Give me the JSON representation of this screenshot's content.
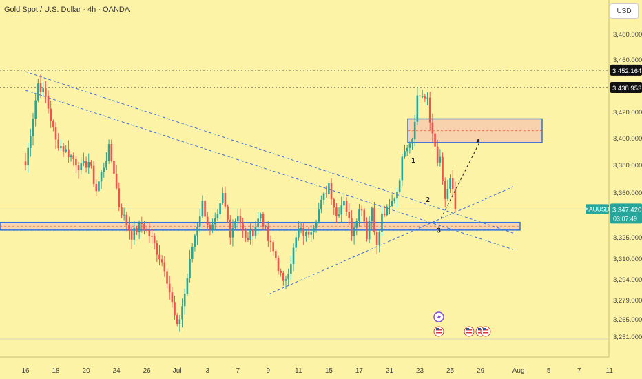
{
  "header": {
    "title": "Gold Spot / U.S. Dollar · 4h · OANDA",
    "currency": "USD"
  },
  "chart_data": {
    "type": "candlestick",
    "symbol": "XAUUSD",
    "last_price": "3,347.420",
    "countdown": "03:07:49",
    "y_ticks": [
      {
        "v": 3251,
        "label": "3,251.000"
      },
      {
        "v": 3265,
        "label": "3,265.000"
      },
      {
        "v": 3279,
        "label": "3,279.000"
      },
      {
        "v": 3294,
        "label": "3,294.000"
      },
      {
        "v": 3310,
        "label": "3,310.000"
      },
      {
        "v": 3325,
        "label": "3,325.000"
      },
      {
        "v": 3360,
        "label": "3,360.000"
      },
      {
        "v": 3380,
        "label": "3,380.000"
      },
      {
        "v": 3400,
        "label": "3,400.000"
      },
      {
        "v": 3420,
        "label": "3,420.000"
      },
      {
        "v": 3460,
        "label": "3,460.000"
      },
      {
        "v": 3480,
        "label": "3,480.000"
      }
    ],
    "x_ticks": [
      {
        "i": 0,
        "label": "16"
      },
      {
        "i": 12,
        "label": "18"
      },
      {
        "i": 24,
        "label": "20"
      },
      {
        "i": 36,
        "label": "24"
      },
      {
        "i": 48,
        "label": "26"
      },
      {
        "i": 60,
        "label": "Jul"
      },
      {
        "i": 72,
        "label": "3"
      },
      {
        "i": 84,
        "label": "7"
      },
      {
        "i": 96,
        "label": "9"
      },
      {
        "i": 108,
        "label": "11"
      },
      {
        "i": 120,
        "label": "15"
      },
      {
        "i": 132,
        "label": "17"
      },
      {
        "i": 144,
        "label": "21"
      },
      {
        "i": 156,
        "label": "23"
      },
      {
        "i": 168,
        "label": "25"
      },
      {
        "i": 180,
        "label": "29"
      },
      {
        "i": 195,
        "label": "Aug"
      },
      {
        "i": 207,
        "label": "5"
      },
      {
        "i": 219,
        "label": "7"
      },
      {
        "i": 231,
        "label": "11"
      }
    ],
    "price_tags": [
      {
        "v": 3452.164,
        "label": "3,452.164"
      },
      {
        "v": 3438.953,
        "label": "3,438.953"
      }
    ],
    "waypoints": [
      [
        0,
        3380
      ],
      [
        5,
        3442
      ],
      [
        8,
        3432
      ],
      [
        12,
        3398
      ],
      [
        18,
        3387
      ],
      [
        22,
        3378
      ],
      [
        25,
        3383
      ],
      [
        28,
        3362
      ],
      [
        33,
        3392
      ],
      [
        35,
        3376
      ],
      [
        37,
        3350
      ],
      [
        42,
        3327
      ],
      [
        46,
        3336
      ],
      [
        50,
        3324
      ],
      [
        55,
        3304
      ],
      [
        60,
        3258
      ],
      [
        63,
        3284
      ],
      [
        66,
        3319
      ],
      [
        70,
        3352
      ],
      [
        73,
        3329
      ],
      [
        76,
        3340
      ],
      [
        78,
        3358
      ],
      [
        81,
        3329
      ],
      [
        84,
        3344
      ],
      [
        87,
        3323
      ],
      [
        90,
        3330
      ],
      [
        93,
        3344
      ],
      [
        96,
        3323
      ],
      [
        99,
        3311
      ],
      [
        102,
        3290
      ],
      [
        105,
        3309
      ],
      [
        108,
        3331
      ],
      [
        111,
        3327
      ],
      [
        114,
        3336
      ],
      [
        117,
        3352
      ],
      [
        120,
        3367
      ],
      [
        123,
        3342
      ],
      [
        126,
        3356
      ],
      [
        129,
        3329
      ],
      [
        131,
        3342
      ],
      [
        133,
        3350
      ],
      [
        135,
        3327
      ],
      [
        137,
        3349
      ],
      [
        139,
        3318
      ],
      [
        141,
        3342
      ],
      [
        144,
        3348
      ],
      [
        147,
        3362
      ],
      [
        150,
        3394
      ],
      [
        153,
        3401
      ],
      [
        155,
        3432
      ],
      [
        157,
        3433
      ],
      [
        159,
        3428
      ],
      [
        160,
        3412
      ],
      [
        162,
        3397
      ],
      [
        163,
        3379
      ],
      [
        164,
        3385
      ],
      [
        166,
        3352
      ],
      [
        168,
        3371
      ],
      [
        170,
        3347
      ]
    ],
    "annotations": [
      "1",
      "2",
      "3"
    ],
    "dates_note_icons": [
      "lightning-icon",
      "us-flag-icon"
    ]
  }
}
